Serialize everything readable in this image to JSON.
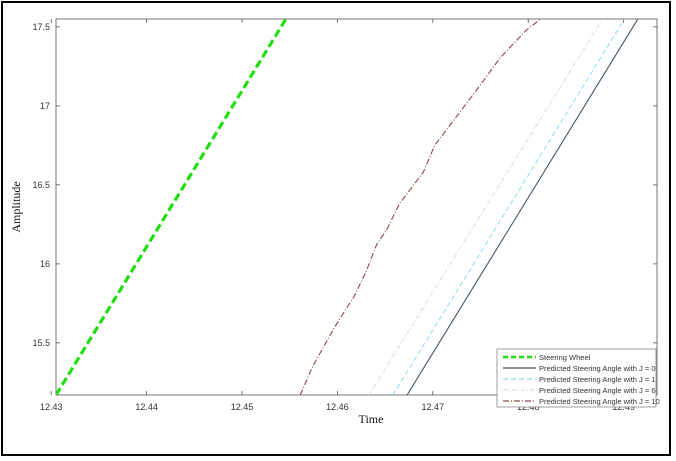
{
  "chart_data": {
    "type": "line",
    "title": "",
    "xlabel": "Time",
    "ylabel": "Amplitude",
    "xlim": [
      12.4305,
      12.4935
    ],
    "ylim": [
      15.17,
      17.55
    ],
    "x_ticks": [
      12.43,
      12.44,
      12.45,
      12.46,
      12.47,
      12.48,
      12.49
    ],
    "x_tick_labels": [
      "12.43",
      "12.44",
      "12.45",
      "12.46",
      "12.47",
      "12.48",
      "12.49"
    ],
    "y_ticks": [
      15.5,
      16,
      16.5,
      17,
      17.5
    ],
    "y_tick_labels": [
      "15.5",
      "16",
      "16.5",
      "17",
      "17.5"
    ],
    "grid": false,
    "legend_position": "bottom-right",
    "series": [
      {
        "name": "Steering Wheel",
        "color": "#22dd11",
        "dash": "8,4",
        "width": 3.2,
        "x": [
          12.4305,
          12.4546
        ],
        "y": [
          15.17,
          17.55
        ]
      },
      {
        "name": "Predicted Steering Angle with J = 0",
        "color": "#445566",
        "dash": "",
        "width": 1.1,
        "x": [
          12.4673,
          12.4915
        ],
        "y": [
          15.17,
          17.55
        ]
      },
      {
        "name": "Predicted Steering Angle with J = 1",
        "color": "#99ddee",
        "dash": "5,3",
        "width": 1.1,
        "x": [
          12.4658,
          12.4901
        ],
        "y": [
          15.17,
          17.55
        ]
      },
      {
        "name": "Predicted Steering Angle with J = 6",
        "color": "#dcdcdc",
        "dash": "4,2,1,2",
        "width": 1.1,
        "x": [
          12.4633,
          12.4878
        ],
        "y": [
          15.17,
          17.55
        ]
      },
      {
        "name": "Predicted Steering Angle with J = 10",
        "color": "#8a4a4a",
        "dash": "6,2,1,2",
        "width": 1.1,
        "x": [
          12.4561,
          12.4574,
          12.4597,
          12.4618,
          12.463,
          12.4641,
          12.4652,
          12.4665,
          12.469,
          12.4702,
          12.4727,
          12.4752,
          12.477,
          12.4798,
          12.4813
        ],
        "y": [
          15.17,
          15.35,
          15.6,
          15.8,
          15.95,
          16.12,
          16.22,
          16.38,
          16.58,
          16.75,
          16.95,
          17.15,
          17.3,
          17.48,
          17.55
        ]
      }
    ]
  }
}
